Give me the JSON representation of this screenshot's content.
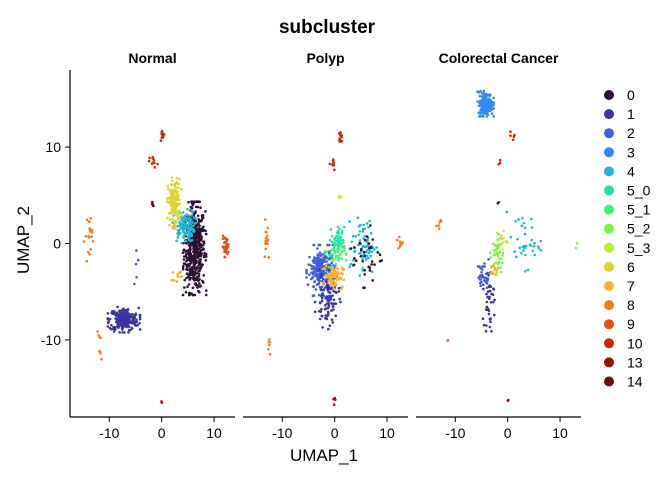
{
  "chart_data": {
    "type": "scatter",
    "title": "subcluster",
    "xlabel": "UMAP_1",
    "ylabel": "UMAP_2",
    "xlim": [
      -17.5,
      14
    ],
    "ylim": [
      -18,
      18
    ],
    "x_ticks": [
      -10,
      0,
      10
    ],
    "y_ticks": [
      -10,
      0,
      10
    ],
    "grid": false,
    "legend_position": "right",
    "facets": [
      "Normal",
      "Polyp",
      "Colorectal Cancer"
    ],
    "series": [
      {
        "name": "0",
        "color": "#2a1033"
      },
      {
        "name": "1",
        "color": "#3b33a2"
      },
      {
        "name": "2",
        "color": "#3f5ee0"
      },
      {
        "name": "3",
        "color": "#3388f5"
      },
      {
        "name": "4",
        "color": "#22b5d8"
      },
      {
        "name": "5_0",
        "color": "#22e0a8"
      },
      {
        "name": "5_1",
        "color": "#3ff27a"
      },
      {
        "name": "5_2",
        "color": "#7cf540"
      },
      {
        "name": "5_3",
        "color": "#b7f033"
      },
      {
        "name": "6",
        "color": "#dbd433"
      },
      {
        "name": "7",
        "color": "#f8b02d"
      },
      {
        "name": "8",
        "color": "#f57b22"
      },
      {
        "name": "9",
        "color": "#e84e15"
      },
      {
        "name": "10",
        "color": "#c92a06"
      },
      {
        "name": "13",
        "color": "#9c1002"
      },
      {
        "name": "14",
        "color": "#6e0a0a"
      }
    ],
    "clusters": [
      {
        "facet": 0,
        "series": "0",
        "cx": 6.3,
        "cy": -0.5,
        "sx": 1.0,
        "sy": 2.2,
        "n": 500
      },
      {
        "facet": 0,
        "series": "1",
        "cx": -7.2,
        "cy": -7.9,
        "sx": 1.4,
        "sy": 0.6,
        "n": 220
      },
      {
        "facet": 0,
        "series": "4",
        "cx": 4.3,
        "cy": 1.8,
        "sx": 1.0,
        "sy": 0.8,
        "n": 130
      },
      {
        "facet": 0,
        "series": "6",
        "cx": 2.4,
        "cy": 4.2,
        "sx": 0.6,
        "sy": 1.2,
        "n": 150
      },
      {
        "facet": 0,
        "series": "9",
        "cx": 12.2,
        "cy": -0.3,
        "sx": 0.3,
        "sy": 0.5,
        "n": 35
      },
      {
        "facet": 0,
        "series": "8",
        "cx": -13.5,
        "cy": 0.8,
        "sx": 0.6,
        "sy": 1.2,
        "n": 20
      },
      {
        "facet": 0,
        "series": "8",
        "cx": -11.8,
        "cy": -10.8,
        "sx": 0.3,
        "sy": 0.8,
        "n": 8
      },
      {
        "facet": 0,
        "series": "10",
        "cx": 0.3,
        "cy": 11.2,
        "sx": 0.2,
        "sy": 0.3,
        "n": 12
      },
      {
        "facet": 0,
        "series": "10",
        "cx": -1.5,
        "cy": 8.5,
        "sx": 0.4,
        "sy": 0.3,
        "n": 10
      },
      {
        "facet": 0,
        "series": "14",
        "cx": -1.8,
        "cy": 4.1,
        "sx": 0.1,
        "sy": 0.2,
        "n": 5
      },
      {
        "facet": 0,
        "series": "7",
        "cx": 3.0,
        "cy": -3.3,
        "sx": 0.5,
        "sy": 0.3,
        "n": 10
      },
      {
        "facet": 0,
        "series": "2",
        "cx": -4.5,
        "cy": -2.5,
        "sx": 0.8,
        "sy": 0.8,
        "n": 5
      },
      {
        "facet": 0,
        "series": "13",
        "cx": 0.0,
        "cy": -16.4,
        "sx": 0.1,
        "sy": 0.1,
        "n": 2
      },
      {
        "facet": 1,
        "series": "2",
        "cx": -2.5,
        "cy": -2.8,
        "sx": 1.3,
        "sy": 1.2,
        "n": 220
      },
      {
        "facet": 1,
        "series": "1",
        "cx": -1.3,
        "cy": -5.8,
        "sx": 1.1,
        "sy": 1.4,
        "n": 90
      },
      {
        "facet": 1,
        "series": "7",
        "cx": -0.2,
        "cy": -3.4,
        "sx": 0.9,
        "sy": 0.6,
        "n": 80
      },
      {
        "facet": 1,
        "series": "5_1",
        "cx": 0.2,
        "cy": -0.8,
        "sx": 0.9,
        "sy": 0.9,
        "n": 60
      },
      {
        "facet": 1,
        "series": "5_0",
        "cx": 0.6,
        "cy": 0.5,
        "sx": 0.6,
        "sy": 0.6,
        "n": 30
      },
      {
        "facet": 1,
        "series": "4",
        "cx": 5.5,
        "cy": -0.3,
        "sx": 1.2,
        "sy": 1.4,
        "n": 70
      },
      {
        "facet": 1,
        "series": "0",
        "cx": 6.2,
        "cy": -1.3,
        "sx": 1.4,
        "sy": 1.5,
        "n": 35
      },
      {
        "facet": 1,
        "series": "5_3",
        "cx": 1.2,
        "cy": 4.8,
        "sx": 0.2,
        "sy": 0.2,
        "n": 4
      },
      {
        "facet": 1,
        "series": "10",
        "cx": 1.1,
        "cy": 11.0,
        "sx": 0.2,
        "sy": 0.4,
        "n": 12
      },
      {
        "facet": 1,
        "series": "10",
        "cx": -0.5,
        "cy": 8.4,
        "sx": 0.4,
        "sy": 0.4,
        "n": 10
      },
      {
        "facet": 1,
        "series": "8",
        "cx": -13.0,
        "cy": 1.0,
        "sx": 0.3,
        "sy": 1.4,
        "n": 15
      },
      {
        "facet": 1,
        "series": "8",
        "cx": -12.5,
        "cy": -10.7,
        "sx": 0.2,
        "sy": 0.7,
        "n": 6
      },
      {
        "facet": 1,
        "series": "8",
        "cx": 12.5,
        "cy": 0.0,
        "sx": 0.3,
        "sy": 0.4,
        "n": 8
      },
      {
        "facet": 1,
        "series": "13",
        "cx": 0.0,
        "cy": -16.3,
        "sx": 0.1,
        "sy": 0.3,
        "n": 5
      },
      {
        "facet": 2,
        "series": "3",
        "cx": -4.2,
        "cy": 14.5,
        "sx": 0.7,
        "sy": 0.6,
        "n": 200
      },
      {
        "facet": 2,
        "series": "1",
        "cx": -3.6,
        "cy": -5.8,
        "sx": 0.5,
        "sy": 1.5,
        "n": 40
      },
      {
        "facet": 2,
        "series": "2",
        "cx": -4.6,
        "cy": -3.4,
        "sx": 0.6,
        "sy": 0.8,
        "n": 30
      },
      {
        "facet": 2,
        "series": "5_2",
        "cx": -2.0,
        "cy": -1.3,
        "sx": 0.6,
        "sy": 1.1,
        "n": 40
      },
      {
        "facet": 2,
        "series": "5_3",
        "cx": -1.2,
        "cy": 0.5,
        "sx": 0.5,
        "sy": 0.6,
        "n": 15
      },
      {
        "facet": 2,
        "series": "7",
        "cx": -2.6,
        "cy": -2.8,
        "sx": 0.3,
        "sy": 0.3,
        "n": 10
      },
      {
        "facet": 2,
        "series": "4",
        "cx": 3.0,
        "cy": 0.2,
        "sx": 1.6,
        "sy": 1.4,
        "n": 35
      },
      {
        "facet": 2,
        "series": "10",
        "cx": 1.0,
        "cy": 11.2,
        "sx": 0.3,
        "sy": 0.2,
        "n": 5
      },
      {
        "facet": 2,
        "series": "10",
        "cx": -1.3,
        "cy": 8.2,
        "sx": 0.2,
        "sy": 0.2,
        "n": 3
      },
      {
        "facet": 2,
        "series": "8",
        "cx": -13.0,
        "cy": 2.2,
        "sx": 0.3,
        "sy": 0.4,
        "n": 6
      },
      {
        "facet": 2,
        "series": "8",
        "cx": -11.3,
        "cy": -10.2,
        "sx": 0.1,
        "sy": 0.1,
        "n": 2
      },
      {
        "facet": 2,
        "series": "14",
        "cx": -1.8,
        "cy": 4.2,
        "sx": 0.1,
        "sy": 0.1,
        "n": 2
      },
      {
        "facet": 2,
        "series": "13",
        "cx": 0.1,
        "cy": -16.4,
        "sx": 0.1,
        "sy": 0.1,
        "n": 2
      },
      {
        "facet": 2,
        "series": "5_2",
        "cx": 13.3,
        "cy": -0.2,
        "sx": 0.2,
        "sy": 0.2,
        "n": 2
      }
    ]
  }
}
